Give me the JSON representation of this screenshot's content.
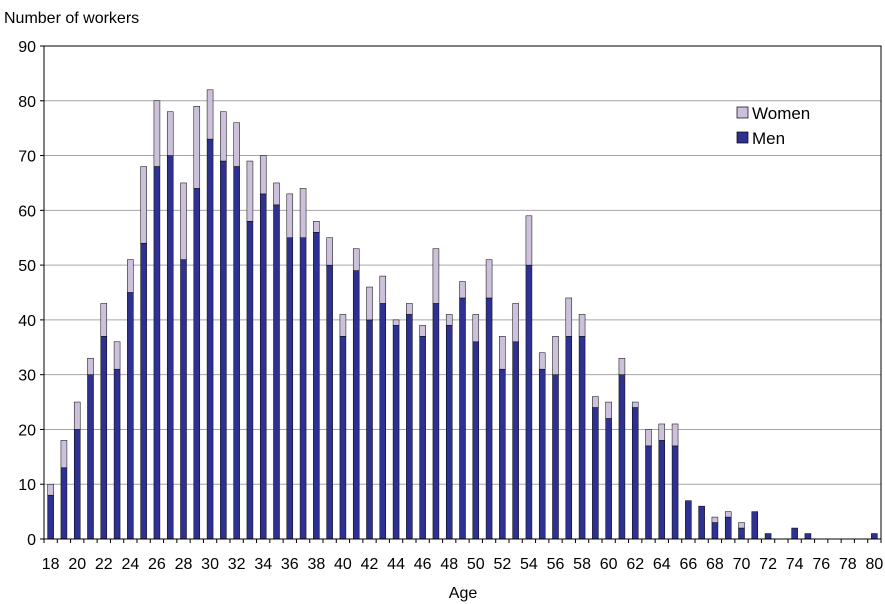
{
  "chart_data": {
    "type": "bar",
    "stacked": true,
    "title": "",
    "ylabel": "Number of workers",
    "xlabel": "Age",
    "ylim": [
      0,
      90
    ],
    "yticks": [
      0,
      10,
      20,
      30,
      40,
      50,
      60,
      70,
      80,
      90
    ],
    "xticks": [
      18,
      20,
      22,
      24,
      26,
      28,
      30,
      32,
      34,
      36,
      38,
      40,
      42,
      44,
      46,
      48,
      50,
      52,
      54,
      56,
      58,
      60,
      62,
      64,
      66,
      68,
      70,
      72,
      74,
      76,
      78,
      80
    ],
    "grid": "horizontal",
    "legend_position": "top-right",
    "legend_order": [
      "Women",
      "Men"
    ],
    "x": [
      18,
      19,
      20,
      21,
      22,
      23,
      24,
      25,
      26,
      27,
      28,
      29,
      30,
      31,
      32,
      33,
      34,
      35,
      36,
      37,
      38,
      39,
      40,
      41,
      42,
      43,
      44,
      45,
      46,
      47,
      48,
      49,
      50,
      51,
      52,
      53,
      54,
      55,
      56,
      57,
      58,
      59,
      60,
      61,
      62,
      63,
      64,
      65,
      66,
      67,
      68,
      69,
      70,
      71,
      72,
      73,
      74,
      75,
      76,
      77,
      78,
      79,
      80
    ],
    "series": [
      {
        "name": "Men",
        "color": "#2e3192",
        "values": [
          8,
          13,
          20,
          30,
          37,
          31,
          45,
          54,
          68,
          70,
          51,
          64,
          73,
          69,
          68,
          58,
          63,
          61,
          55,
          55,
          56,
          50,
          37,
          49,
          40,
          43,
          39,
          41,
          37,
          43,
          39,
          44,
          36,
          44,
          31,
          36,
          50,
          31,
          30,
          37,
          37,
          24,
          22,
          30,
          24,
          17,
          18,
          17,
          7,
          6,
          3,
          4,
          2,
          5,
          1,
          0,
          2,
          1,
          0,
          0,
          0,
          0,
          1
        ]
      },
      {
        "name": "Women",
        "color": "#ccc0da",
        "values": [
          2,
          5,
          5,
          3,
          6,
          5,
          6,
          14,
          12,
          8,
          14,
          15,
          9,
          9,
          8,
          11,
          7,
          4,
          8,
          9,
          2,
          5,
          4,
          4,
          6,
          5,
          1,
          2,
          2,
          10,
          2,
          3,
          5,
          7,
          6,
          7,
          9,
          3,
          7,
          7,
          4,
          2,
          3,
          3,
          1,
          3,
          3,
          4,
          0,
          0,
          1,
          1,
          1,
          0,
          0,
          0,
          0,
          0,
          0,
          0,
          0,
          0,
          0
        ]
      }
    ]
  }
}
